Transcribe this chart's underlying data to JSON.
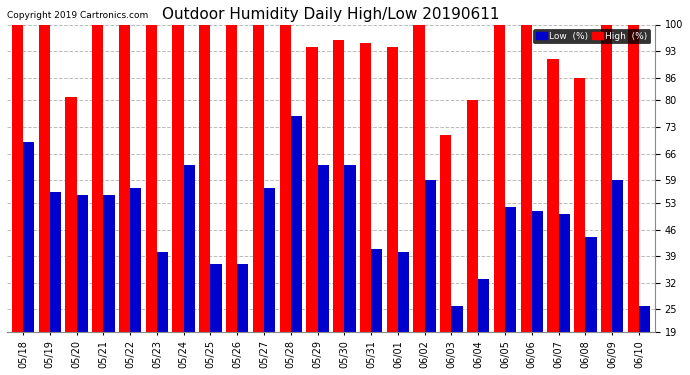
{
  "title": "Outdoor Humidity Daily High/Low 20190611",
  "copyright": "Copyright 2019 Cartronics.com",
  "dates": [
    "05/18",
    "05/19",
    "05/20",
    "05/21",
    "05/22",
    "05/23",
    "05/24",
    "05/25",
    "05/26",
    "05/27",
    "05/28",
    "05/29",
    "05/30",
    "05/31",
    "06/01",
    "06/02",
    "06/03",
    "06/04",
    "06/05",
    "06/06",
    "06/07",
    "06/08",
    "06/09",
    "06/10"
  ],
  "high": [
    100,
    100,
    81,
    100,
    100,
    100,
    100,
    100,
    100,
    100,
    100,
    94,
    96,
    95,
    94,
    100,
    71,
    80,
    100,
    100,
    91,
    86,
    100,
    100
  ],
  "low": [
    69,
    56,
    55,
    55,
    57,
    40,
    63,
    37,
    37,
    57,
    76,
    63,
    63,
    41,
    40,
    59,
    26,
    33,
    52,
    51,
    50,
    44,
    59,
    26
  ],
  "high_color": "#ff0000",
  "low_color": "#0000cc",
  "bg_color": "#ffffff",
  "title_fontsize": 11,
  "tick_fontsize": 7,
  "ylim_min": 19,
  "ylim_max": 100,
  "yticks": [
    19,
    25,
    32,
    39,
    46,
    53,
    59,
    66,
    73,
    80,
    86,
    93,
    100
  ],
  "legend_labels": [
    "Low  (%)",
    "High  (%)"
  ],
  "legend_colors": [
    "#0000cc",
    "#ff0000"
  ]
}
